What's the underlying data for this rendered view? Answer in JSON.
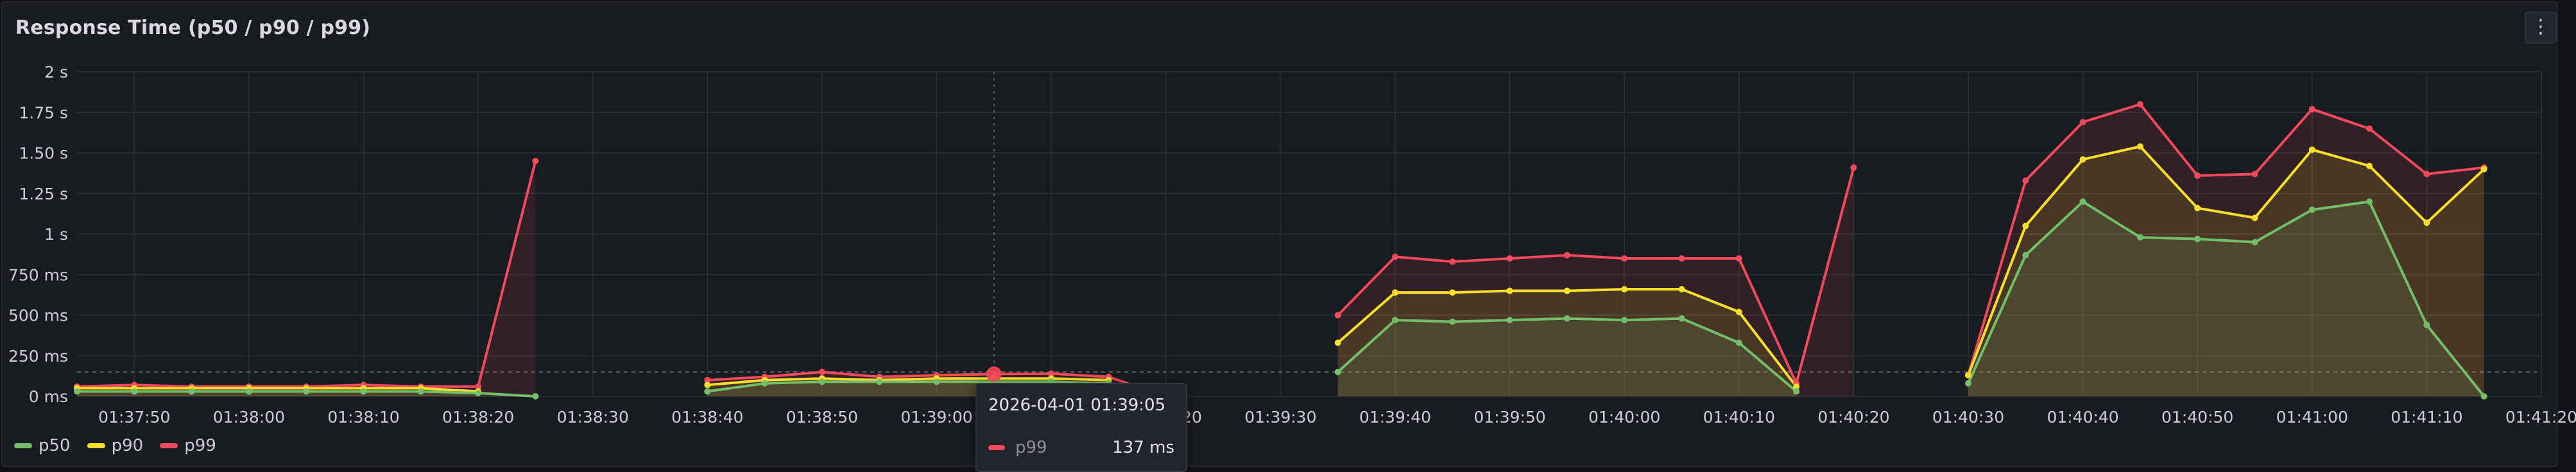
{
  "panel": {
    "title": "Response Time (p50 / p90 / p99)",
    "menu_icon": "⋮"
  },
  "colors": {
    "p50": "#73bf69",
    "p90": "#fade2a",
    "p99": "#f2495c",
    "grid": "#2a2d33",
    "axis_text": "#ccccdc",
    "threshold": "#5a5d66"
  },
  "tooltip": {
    "time": "2026-04-01 01:39:05",
    "series": "p99",
    "value": "137 ms"
  },
  "chart_data": {
    "type": "line",
    "title": "Response Time (p50 / p90 / p99)",
    "x_start": "01:37:45",
    "x_end": "01:41:20",
    "y_unit": "seconds",
    "ylim": [
      0,
      2
    ],
    "y_ticks": [
      {
        "value": 0,
        "label": "0 ms"
      },
      {
        "value": 0.25,
        "label": "250 ms"
      },
      {
        "value": 0.5,
        "label": "500 ms"
      },
      {
        "value": 0.75,
        "label": "750 ms"
      },
      {
        "value": 1,
        "label": "1 s"
      },
      {
        "value": 1.25,
        "label": "1.25 s"
      },
      {
        "value": 1.5,
        "label": "1.50 s"
      },
      {
        "value": 1.75,
        "label": "1.75 s"
      },
      {
        "value": 2,
        "label": "2 s"
      }
    ],
    "x_ticks": [
      "01:37:50",
      "01:38:00",
      "01:38:10",
      "01:38:20",
      "01:38:30",
      "01:38:40",
      "01:38:50",
      "01:39:00",
      "01:39:10",
      "01:39:20",
      "01:39:30",
      "01:39:40",
      "01:39:50",
      "01:40:00",
      "01:40:10",
      "01:40:20",
      "01:40:30",
      "01:40:40",
      "01:40:50",
      "01:41:00",
      "01:41:10",
      "01:41:20"
    ],
    "threshold": 0.15,
    "cursor_time": "01:39:05",
    "legend_position": "bottom-left",
    "grid": true,
    "series": [
      {
        "name": "p50",
        "segments": [
          [
            [
              "01:37:45",
              0.03
            ],
            [
              "01:37:50",
              0.03
            ],
            [
              "01:37:55",
              0.03
            ],
            [
              "01:38:00",
              0.03
            ],
            [
              "01:38:05",
              0.03
            ],
            [
              "01:38:10",
              0.03
            ],
            [
              "01:38:15",
              0.03
            ],
            [
              "01:38:20",
              0.02
            ],
            [
              "01:38:25",
              0.0
            ]
          ],
          [
            [
              "01:38:40",
              0.03
            ],
            [
              "01:38:45",
              0.08
            ],
            [
              "01:38:50",
              0.09
            ],
            [
              "01:38:55",
              0.09
            ],
            [
              "01:39:00",
              0.09
            ],
            [
              "01:39:05",
              0.09
            ],
            [
              "01:39:10",
              0.09
            ],
            [
              "01:39:15",
              0.08
            ]
          ],
          [
            [
              "01:39:35",
              0.15
            ],
            [
              "01:39:40",
              0.47
            ],
            [
              "01:39:45",
              0.46
            ],
            [
              "01:39:50",
              0.47
            ],
            [
              "01:39:55",
              0.48
            ],
            [
              "01:40:00",
              0.47
            ],
            [
              "01:40:05",
              0.48
            ],
            [
              "01:40:10",
              0.33
            ],
            [
              "01:40:15",
              0.03
            ]
          ],
          [
            [
              "01:40:30",
              0.08
            ],
            [
              "01:40:35",
              0.87
            ],
            [
              "01:40:40",
              1.2
            ],
            [
              "01:40:45",
              0.98
            ],
            [
              "01:40:50",
              0.97
            ],
            [
              "01:40:55",
              0.95
            ],
            [
              "01:41:00",
              1.15
            ],
            [
              "01:41:05",
              1.2
            ],
            [
              "01:41:10",
              0.44
            ],
            [
              "01:41:15",
              0.0
            ]
          ]
        ]
      },
      {
        "name": "p90",
        "segments": [
          [
            [
              "01:37:45",
              0.05
            ],
            [
              "01:37:50",
              0.05
            ],
            [
              "01:37:55",
              0.05
            ],
            [
              "01:38:00",
              0.05
            ],
            [
              "01:38:05",
              0.05
            ],
            [
              "01:38:10",
              0.05
            ],
            [
              "01:38:15",
              0.05
            ],
            [
              "01:38:20",
              0.03
            ]
          ],
          [
            [
              "01:38:40",
              0.07
            ],
            [
              "01:38:45",
              0.1
            ],
            [
              "01:38:50",
              0.11
            ],
            [
              "01:38:55",
              0.1
            ],
            [
              "01:39:00",
              0.11
            ],
            [
              "01:39:05",
              0.11
            ],
            [
              "01:39:10",
              0.11
            ],
            [
              "01:39:15",
              0.1
            ]
          ],
          [
            [
              "01:39:35",
              0.33
            ],
            [
              "01:39:40",
              0.64
            ],
            [
              "01:39:45",
              0.64
            ],
            [
              "01:39:50",
              0.65
            ],
            [
              "01:39:55",
              0.65
            ],
            [
              "01:40:00",
              0.66
            ],
            [
              "01:40:05",
              0.66
            ],
            [
              "01:40:10",
              0.52
            ],
            [
              "01:40:15",
              0.06
            ]
          ],
          [
            [
              "01:40:30",
              0.13
            ],
            [
              "01:40:35",
              1.05
            ],
            [
              "01:40:40",
              1.46
            ],
            [
              "01:40:45",
              1.54
            ],
            [
              "01:40:50",
              1.16
            ],
            [
              "01:40:55",
              1.1
            ],
            [
              "01:41:00",
              1.52
            ],
            [
              "01:41:05",
              1.42
            ],
            [
              "01:41:10",
              1.07
            ],
            [
              "01:41:15",
              1.4
            ]
          ]
        ]
      },
      {
        "name": "p99",
        "segments": [
          [
            [
              "01:37:45",
              0.06
            ],
            [
              "01:37:50",
              0.07
            ],
            [
              "01:37:55",
              0.06
            ],
            [
              "01:38:00",
              0.06
            ],
            [
              "01:38:05",
              0.06
            ],
            [
              "01:38:10",
              0.07
            ],
            [
              "01:38:15",
              0.06
            ],
            [
              "01:38:20",
              0.06
            ],
            [
              "01:38:25",
              1.45
            ]
          ],
          [
            [
              "01:38:40",
              0.1
            ],
            [
              "01:38:45",
              0.12
            ],
            [
              "01:38:50",
              0.15
            ],
            [
              "01:38:55",
              0.12
            ],
            [
              "01:39:00",
              0.13
            ],
            [
              "01:39:05",
              0.137
            ],
            [
              "01:39:10",
              0.14
            ],
            [
              "01:39:15",
              0.12
            ],
            [
              "01:39:20",
              0.0
            ]
          ],
          [
            [
              "01:39:35",
              0.5
            ],
            [
              "01:39:40",
              0.86
            ],
            [
              "01:39:45",
              0.83
            ],
            [
              "01:39:50",
              0.85
            ],
            [
              "01:39:55",
              0.87
            ],
            [
              "01:40:00",
              0.85
            ],
            [
              "01:40:05",
              0.85
            ],
            [
              "01:40:10",
              0.85
            ],
            [
              "01:40:15",
              0.08
            ],
            [
              "01:40:20",
              1.41
            ]
          ],
          [
            [
              "01:40:30",
              0.13
            ],
            [
              "01:40:35",
              1.33
            ],
            [
              "01:40:40",
              1.69
            ],
            [
              "01:40:45",
              1.8
            ],
            [
              "01:40:50",
              1.36
            ],
            [
              "01:40:55",
              1.37
            ],
            [
              "01:41:00",
              1.77
            ],
            [
              "01:41:05",
              1.65
            ],
            [
              "01:41:10",
              1.37
            ],
            [
              "01:41:15",
              1.41
            ]
          ]
        ]
      }
    ]
  }
}
